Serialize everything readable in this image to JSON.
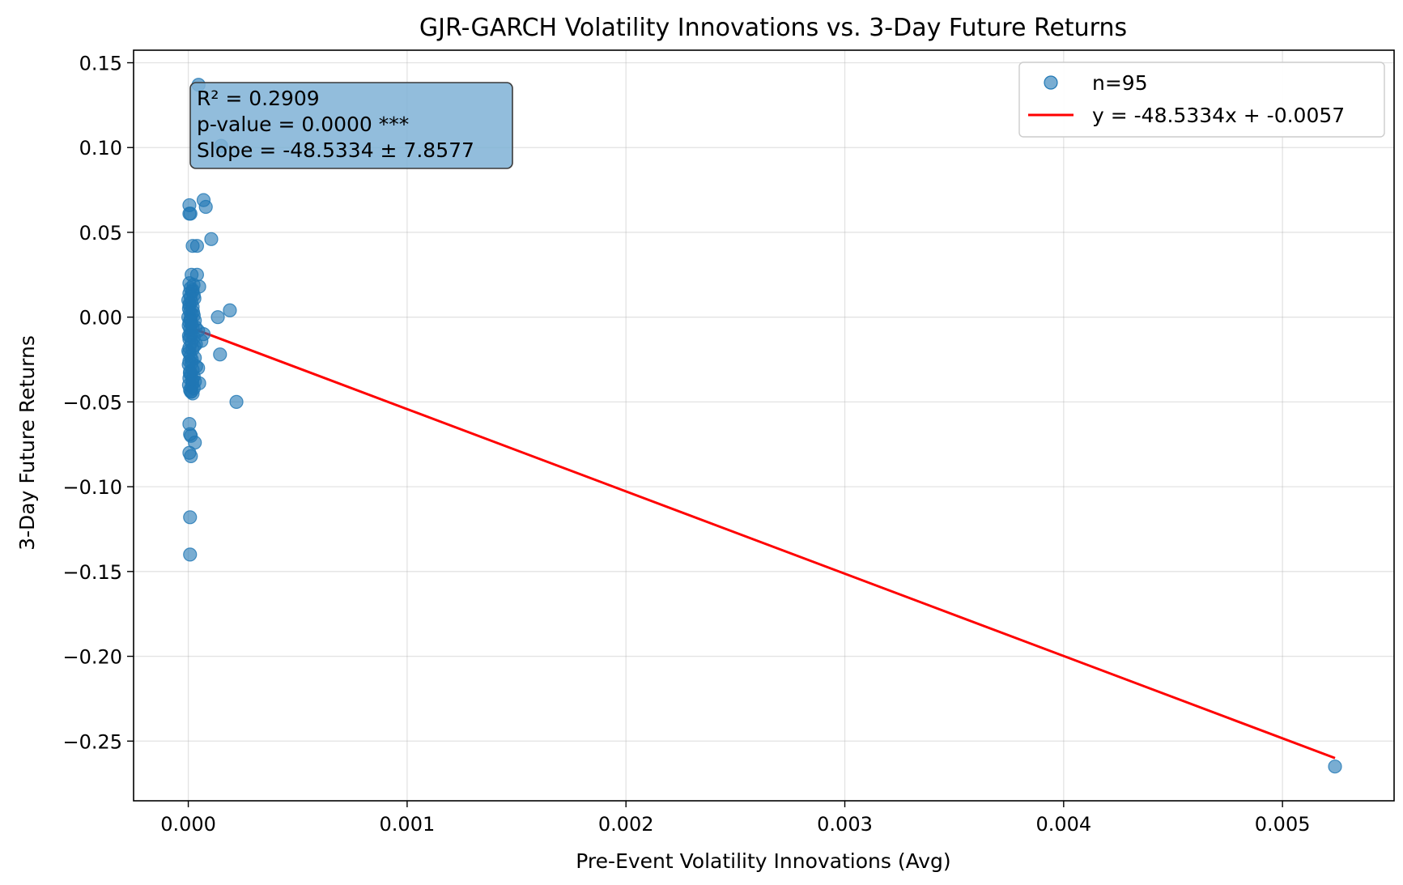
{
  "chart_data": {
    "type": "scatter",
    "title": "GJR-GARCH Volatility Innovations vs. 3-Day Future Returns",
    "xlabel": "Pre-Event Volatility Innovations (Avg)",
    "ylabel": "3-Day Future Returns",
    "xlim": [
      -0.00025,
      0.00551
    ],
    "ylim": [
      -0.2852,
      0.1574
    ],
    "xticks": [
      0.0,
      0.001,
      0.002,
      0.003,
      0.004,
      0.005
    ],
    "xtick_labels": [
      "0.000",
      "0.001",
      "0.002",
      "0.003",
      "0.004",
      "0.005"
    ],
    "yticks": [
      -0.25,
      -0.2,
      -0.15,
      -0.1,
      -0.05,
      0.0,
      0.05,
      0.1,
      0.15
    ],
    "ytick_labels": [
      "−0.25",
      "−0.20",
      "−0.15",
      "−0.10",
      "−0.05",
      "0.00",
      "0.05",
      "0.10",
      "0.15"
    ],
    "grid": true,
    "legend_position": "top-right",
    "series": [
      {
        "name": "n=95",
        "kind": "scatter",
        "color": "#1f77b4",
        "points": [
          [
            4.7e-05,
            0.137
          ],
          [
            0.00015,
            0.101
          ],
          [
            7e-05,
            0.069
          ],
          [
            8e-05,
            0.065
          ],
          [
            5e-06,
            0.066
          ],
          [
            5e-06,
            0.061
          ],
          [
            1e-05,
            0.061
          ],
          [
            0.000105,
            0.046
          ],
          [
            4e-05,
            0.042
          ],
          [
            2e-05,
            0.042
          ],
          [
            4e-05,
            0.025
          ],
          [
            1.5e-05,
            0.025
          ],
          [
            5e-05,
            0.018
          ],
          [
            5e-06,
            0.02
          ],
          [
            1e-05,
            0.017
          ],
          [
            2e-05,
            0.016
          ],
          [
            5e-06,
            0.014
          ],
          [
            2.5e-05,
            0.013
          ],
          [
            1e-05,
            0.012
          ],
          [
            0.0,
            0.01
          ],
          [
            1.5e-05,
            0.009
          ],
          [
            5e-06,
            0.007
          ],
          [
            2e-05,
            0.006
          ],
          [
            3e-06,
            0.005
          ],
          [
            0.00019,
            0.004
          ],
          [
            8e-06,
            0.003
          ],
          [
            1.5e-05,
            0.002
          ],
          [
            2.5e-05,
            0.001
          ],
          [
            0.0,
            0.0
          ],
          [
            0.000135,
            0.0
          ],
          [
            1e-05,
            -0.001
          ],
          [
            3e-05,
            -0.002
          ],
          [
            5e-06,
            -0.003
          ],
          [
            1.5e-05,
            -0.004
          ],
          [
            2e-06,
            -0.005
          ],
          [
            2e-05,
            -0.006
          ],
          [
            8e-06,
            -0.007
          ],
          [
            4.5e-05,
            -0.008
          ],
          [
            1.2e-05,
            -0.009
          ],
          [
            7e-05,
            -0.01
          ],
          [
            3e-06,
            -0.011
          ],
          [
            2.5e-05,
            -0.012
          ],
          [
            5e-06,
            -0.013
          ],
          [
            6e-05,
            -0.014
          ],
          [
            1.5e-05,
            -0.015
          ],
          [
            3.5e-05,
            -0.016
          ],
          [
            5e-06,
            -0.018
          ],
          [
            2e-05,
            -0.019
          ],
          [
            0.0,
            -0.02
          ],
          [
            0.000145,
            -0.022
          ],
          [
            1e-05,
            -0.023
          ],
          [
            3e-05,
            -0.024
          ],
          [
            5e-06,
            -0.026
          ],
          [
            1.5e-05,
            -0.027
          ],
          [
            2e-06,
            -0.028
          ],
          [
            4.5e-05,
            -0.03
          ],
          [
            2e-05,
            -0.031
          ],
          [
            8e-06,
            -0.032
          ],
          [
            1.2e-05,
            -0.034
          ],
          [
            2.5e-05,
            -0.035
          ],
          [
            5e-06,
            -0.036
          ],
          [
            1.8e-05,
            -0.037
          ],
          [
            3e-05,
            -0.038
          ],
          [
            5e-05,
            -0.039
          ],
          [
            3e-06,
            -0.04
          ],
          [
            1.5e-05,
            -0.041
          ],
          [
            2.5e-05,
            -0.042
          ],
          [
            8e-06,
            -0.043
          ],
          [
            1.2e-05,
            -0.044
          ],
          [
            2e-05,
            -0.045
          ],
          [
            0.00022,
            -0.05
          ],
          [
            5e-06,
            -0.063
          ],
          [
            8e-06,
            -0.069
          ],
          [
            1.2e-05,
            -0.07
          ],
          [
            3e-05,
            -0.074
          ],
          [
            5e-06,
            -0.08
          ],
          [
            1.2e-05,
            -0.082
          ],
          [
            8e-06,
            -0.118
          ],
          [
            8e-06,
            -0.14
          ],
          [
            0.00524,
            -0.265
          ],
          [
            1.8e-05,
            0.015
          ],
          [
            2.8e-05,
            0.011
          ],
          [
            6e-06,
            0.008
          ],
          [
            2.2e-05,
            0.003
          ],
          [
            1.1e-05,
            -0.002
          ],
          [
            3.3e-05,
            -0.006
          ],
          [
            9e-06,
            -0.011
          ],
          [
            2.7e-05,
            -0.017
          ],
          [
            4e-06,
            -0.021
          ],
          [
            1.6e-05,
            -0.025
          ],
          [
            3.6e-05,
            -0.029
          ],
          [
            7e-06,
            -0.033
          ],
          [
            1.9e-05,
            -0.039
          ],
          [
            1.4e-05,
            -0.044
          ],
          [
            2.4e-05,
            0.019
          ]
        ]
      },
      {
        "name": "y = -48.5334x + -0.0057",
        "kind": "line",
        "color": "#ff0000",
        "x": [
          0.0,
          0.00524
        ],
        "y": [
          -0.0057,
          -0.26
        ]
      }
    ],
    "annotation": {
      "lines": [
        "R² = 0.2909",
        "p-value = 0.0000 ***",
        "Slope = -48.5334 ± 7.8577"
      ],
      "position": "top-left"
    }
  }
}
